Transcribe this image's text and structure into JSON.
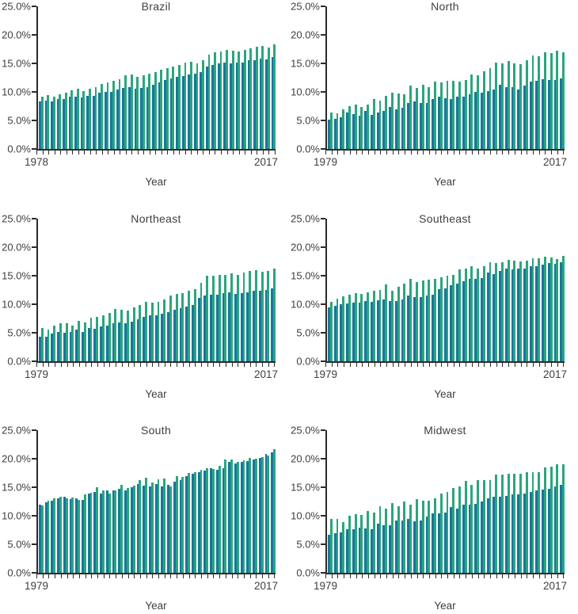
{
  "colors": {
    "series_teal": "#16779E",
    "series_green": "#2CA57C",
    "axis": "#2B2B2B",
    "text": "#3E3E3E",
    "background": "#FFFFFF"
  },
  "chart_data": [
    {
      "type": "bar",
      "title": "Brazil",
      "xlabel": "Year",
      "ylabel": "",
      "ylim": [
        0,
        25
      ],
      "yticks": [
        "25.0%",
        "20.0%",
        "15.0%",
        "10.0%",
        "5.0%",
        "0.0%"
      ],
      "grid": false,
      "legend": "none",
      "x_first": "1978",
      "x_last": "2017",
      "years": [
        1978,
        1979,
        1980,
        1981,
        1982,
        1983,
        1984,
        1985,
        1986,
        1987,
        1988,
        1989,
        1990,
        1991,
        1992,
        1993,
        1994,
        1995,
        1996,
        1997,
        1998,
        1999,
        2000,
        2001,
        2002,
        2003,
        2004,
        2005,
        2006,
        2007,
        2008,
        2009,
        2010,
        2011,
        2012,
        2013,
        2014,
        2015,
        2016,
        2017
      ],
      "series": [
        {
          "name": "teal",
          "color": "#16779E",
          "values": [
            8.3,
            8.5,
            8.4,
            8.7,
            8.8,
            9.1,
            9.2,
            9.0,
            9.3,
            9.3,
            9.8,
            10.0,
            10.0,
            10.4,
            10.7,
            10.8,
            10.5,
            10.7,
            10.9,
            11.3,
            11.7,
            12.1,
            12.3,
            12.6,
            12.8,
            13.0,
            13.2,
            13.5,
            14.4,
            14.7,
            15.0,
            15.1,
            15.0,
            15.2,
            15.1,
            15.5,
            15.6,
            15.8,
            15.7,
            16.1
          ]
        },
        {
          "name": "green",
          "color": "#2CA57C",
          "values": [
            9.2,
            9.4,
            9.1,
            9.6,
            9.9,
            10.3,
            10.5,
            10.1,
            10.6,
            10.9,
            11.4,
            11.7,
            11.9,
            12.2,
            12.9,
            13.1,
            12.6,
            12.9,
            13.2,
            13.5,
            13.9,
            14.1,
            14.4,
            14.7,
            15.1,
            15.3,
            15.0,
            15.5,
            16.5,
            16.9,
            17.1,
            17.3,
            17.2,
            17.1,
            17.4,
            17.6,
            17.9,
            18.0,
            17.8,
            18.3
          ]
        }
      ]
    },
    {
      "type": "bar",
      "title": "North",
      "xlabel": "Year",
      "ylabel": "",
      "ylim": [
        0,
        25
      ],
      "yticks": [
        "25.0%",
        "20.0%",
        "15.0%",
        "10.0%",
        "5.0%",
        "0.0%"
      ],
      "grid": false,
      "legend": "none",
      "x_first": "1979",
      "x_last": "2017",
      "years": [
        1979,
        1980,
        1981,
        1982,
        1983,
        1984,
        1985,
        1986,
        1987,
        1988,
        1989,
        1990,
        1991,
        1992,
        1993,
        1994,
        1995,
        1996,
        1997,
        1998,
        1999,
        2000,
        2001,
        2002,
        2003,
        2004,
        2005,
        2006,
        2007,
        2008,
        2009,
        2010,
        2011,
        2012,
        2013,
        2014,
        2015,
        2016,
        2017
      ],
      "series": [
        {
          "name": "teal",
          "color": "#16779E",
          "values": [
            5.2,
            5.3,
            5.5,
            6.4,
            6.1,
            5.9,
            6.6,
            6.0,
            6.4,
            6.7,
            7.4,
            7.0,
            7.2,
            8.1,
            8.3,
            8.1,
            8.0,
            8.8,
            9.1,
            8.9,
            8.8,
            9.2,
            9.1,
            9.6,
            10.0,
            9.9,
            10.1,
            10.4,
            11.2,
            10.9,
            10.8,
            10.4,
            11.1,
            11.8,
            11.9,
            12.2,
            12.1,
            12.1,
            12.3
          ]
        },
        {
          "name": "green",
          "color": "#2CA57C",
          "values": [
            6.4,
            6.2,
            7.0,
            7.5,
            7.8,
            7.4,
            7.8,
            8.8,
            8.5,
            9.3,
            9.9,
            9.7,
            9.6,
            11.1,
            10.7,
            11.2,
            10.8,
            11.8,
            11.6,
            12.0,
            12.0,
            11.8,
            12.1,
            13.1,
            12.9,
            13.6,
            14.1,
            15.1,
            15.0,
            15.4,
            15.0,
            14.9,
            15.5,
            16.4,
            16.2,
            17.0,
            16.8,
            17.2,
            17.0
          ]
        }
      ]
    },
    {
      "type": "bar",
      "title": "Northeast",
      "xlabel": "Year",
      "ylabel": "",
      "ylim": [
        0,
        25
      ],
      "yticks": [
        "25.0%",
        "20.0%",
        "15.0%",
        "10.0%",
        "5.0%",
        "0.0%"
      ],
      "grid": false,
      "legend": "none",
      "x_first": "1979",
      "x_last": "2017",
      "years": [
        1979,
        1980,
        1981,
        1982,
        1983,
        1984,
        1985,
        1986,
        1987,
        1988,
        1989,
        1990,
        1991,
        1992,
        1993,
        1994,
        1995,
        1996,
        1997,
        1998,
        1999,
        2000,
        2001,
        2002,
        2003,
        2004,
        2005,
        2006,
        2007,
        2008,
        2009,
        2010,
        2011,
        2012,
        2013,
        2014,
        2015,
        2016,
        2017
      ],
      "series": [
        {
          "name": "teal",
          "color": "#16779E",
          "values": [
            4.3,
            4.3,
            4.8,
            5.1,
            5.0,
            5.1,
            5.5,
            5.1,
            5.8,
            5.7,
            6.1,
            6.3,
            6.7,
            6.8,
            6.6,
            7.0,
            7.3,
            7.8,
            8.0,
            8.0,
            8.3,
            8.6,
            9.0,
            9.3,
            9.6,
            9.9,
            11.1,
            11.5,
            11.6,
            11.7,
            11.9,
            12.1,
            11.8,
            12.0,
            12.1,
            12.3,
            12.4,
            12.5,
            12.8
          ]
        },
        {
          "name": "green",
          "color": "#2CA57C",
          "values": [
            5.8,
            5.6,
            6.3,
            6.6,
            6.6,
            6.3,
            7.1,
            6.8,
            7.6,
            7.8,
            8.0,
            8.5,
            9.1,
            9.0,
            8.9,
            9.4,
            9.9,
            10.4,
            10.3,
            10.4,
            10.8,
            11.5,
            11.8,
            12.0,
            12.4,
            12.7,
            13.7,
            15.0,
            15.0,
            15.1,
            15.2,
            15.4,
            15.1,
            15.5,
            15.8,
            16.0,
            15.7,
            15.8,
            16.3
          ]
        }
      ]
    },
    {
      "type": "bar",
      "title": "Southeast",
      "xlabel": "Year",
      "ylabel": "",
      "ylim": [
        0,
        25
      ],
      "yticks": [
        "25.0%",
        "20.0%",
        "15.0%",
        "10.0%",
        "5.0%",
        "0.0%"
      ],
      "grid": false,
      "legend": "none",
      "x_first": "1979",
      "x_last": "2017",
      "years": [
        1979,
        1980,
        1981,
        1982,
        1983,
        1984,
        1985,
        1986,
        1987,
        1988,
        1989,
        1990,
        1991,
        1992,
        1993,
        1994,
        1995,
        1996,
        1997,
        1998,
        1999,
        2000,
        2001,
        2002,
        2003,
        2004,
        2005,
        2006,
        2007,
        2008,
        2009,
        2010,
        2011,
        2012,
        2013,
        2014,
        2015,
        2016,
        2017
      ],
      "series": [
        {
          "name": "teal",
          "color": "#16779E",
          "values": [
            9.5,
            9.7,
            10.0,
            10.2,
            10.3,
            10.3,
            10.5,
            10.4,
            10.7,
            10.9,
            10.5,
            10.6,
            10.8,
            11.5,
            11.2,
            11.3,
            11.5,
            11.7,
            12.6,
            12.8,
            13.3,
            13.6,
            14.0,
            14.5,
            14.4,
            14.6,
            15.5,
            15.3,
            15.8,
            16.2,
            16.1,
            16.2,
            16.3,
            16.6,
            16.6,
            16.9,
            17.2,
            17.1,
            17.4
          ]
        },
        {
          "name": "green",
          "color": "#2CA57C",
          "values": [
            10.4,
            11.0,
            11.4,
            11.6,
            12.0,
            11.8,
            12.1,
            12.3,
            12.5,
            13.5,
            12.4,
            13.1,
            13.6,
            14.4,
            13.9,
            14.1,
            14.3,
            14.5,
            14.7,
            15.0,
            15.2,
            16.1,
            16.3,
            16.6,
            16.2,
            16.7,
            17.4,
            17.2,
            17.4,
            17.8,
            17.7,
            17.5,
            17.7,
            18.1,
            18.0,
            18.3,
            18.2,
            17.9,
            18.5
          ]
        }
      ]
    },
    {
      "type": "bar",
      "title": "South",
      "xlabel": "Year",
      "ylabel": "",
      "ylim": [
        0,
        25
      ],
      "yticks": [
        "25.0%",
        "20.0%",
        "15.0%",
        "10.0%",
        "5.0%",
        "0.0%"
      ],
      "grid": false,
      "legend": "none",
      "x_first": "1979",
      "x_last": "2017",
      "years": [
        1979,
        1980,
        1981,
        1982,
        1983,
        1984,
        1985,
        1986,
        1987,
        1988,
        1989,
        1990,
        1991,
        1992,
        1993,
        1994,
        1995,
        1996,
        1997,
        1998,
        1999,
        2000,
        2001,
        2002,
        2003,
        2004,
        2005,
        2006,
        2007,
        2008,
        2009,
        2010,
        2011,
        2012,
        2013,
        2014,
        2015,
        2016,
        2017
      ],
      "series": [
        {
          "name": "teal",
          "color": "#16779E",
          "values": [
            12.0,
            12.4,
            12.7,
            13.1,
            13.4,
            12.9,
            13.0,
            12.8,
            13.9,
            14.2,
            13.9,
            14.4,
            14.5,
            14.7,
            14.4,
            15.0,
            15.5,
            15.3,
            15.1,
            15.5,
            15.2,
            15.4,
            16.0,
            16.2,
            17.0,
            17.3,
            17.7,
            17.9,
            18.3,
            18.1,
            18.4,
            19.5,
            19.2,
            19.5,
            19.6,
            19.8,
            20.1,
            20.8,
            21.1
          ]
        },
        {
          "name": "green",
          "color": "#2CA57C",
          "values": [
            11.8,
            12.7,
            13.0,
            13.3,
            13.1,
            13.2,
            12.8,
            13.7,
            14.0,
            15.0,
            14.5,
            13.9,
            14.4,
            15.4,
            14.8,
            15.3,
            16.2,
            16.6,
            15.8,
            16.4,
            16.5,
            15.1,
            16.9,
            16.8,
            17.5,
            17.7,
            18.1,
            18.4,
            18.2,
            18.8,
            19.8,
            19.8,
            19.4,
            19.7,
            20.1,
            20.0,
            20.3,
            20.6,
            21.6
          ]
        }
      ]
    },
    {
      "type": "bar",
      "title": "Midwest",
      "xlabel": "Year",
      "ylabel": "",
      "ylim": [
        0,
        25
      ],
      "yticks": [
        "25.0%",
        "20.0%",
        "15.0%",
        "10.0%",
        "5.0%",
        "0.0%"
      ],
      "grid": false,
      "legend": "none",
      "x_first": "1979",
      "x_last": "2017",
      "years": [
        1979,
        1980,
        1981,
        1982,
        1983,
        1984,
        1985,
        1986,
        1987,
        1988,
        1989,
        1990,
        1991,
        1992,
        1993,
        1994,
        1995,
        1996,
        1997,
        1998,
        1999,
        2000,
        2001,
        2002,
        2003,
        2004,
        2005,
        2006,
        2007,
        2008,
        2009,
        2010,
        2011,
        2012,
        2013,
        2014,
        2015,
        2016,
        2017
      ],
      "series": [
        {
          "name": "teal",
          "color": "#16779E",
          "values": [
            6.6,
            6.9,
            7.1,
            7.7,
            7.7,
            7.9,
            7.8,
            7.7,
            8.6,
            8.4,
            8.3,
            9.2,
            9.2,
            9.4,
            9.0,
            9.1,
            9.9,
            10.4,
            10.4,
            10.5,
            11.5,
            11.2,
            11.9,
            12.0,
            12.1,
            12.5,
            13.0,
            13.4,
            13.4,
            13.5,
            13.8,
            13.8,
            13.9,
            14.1,
            14.4,
            14.6,
            14.7,
            15.1,
            15.4
          ]
        },
        {
          "name": "green",
          "color": "#2CA57C",
          "values": [
            9.4,
            9.5,
            8.9,
            10.0,
            10.3,
            10.2,
            10.8,
            10.5,
            11.6,
            11.2,
            12.2,
            11.7,
            12.5,
            12.0,
            12.9,
            12.6,
            12.7,
            13.0,
            13.9,
            14.1,
            14.9,
            15.2,
            16.1,
            15.4,
            16.2,
            16.3,
            16.2,
            17.2,
            17.2,
            17.3,
            17.3,
            17.3,
            17.6,
            17.7,
            17.6,
            18.5,
            18.6,
            19.0,
            19.0
          ]
        }
      ]
    }
  ]
}
